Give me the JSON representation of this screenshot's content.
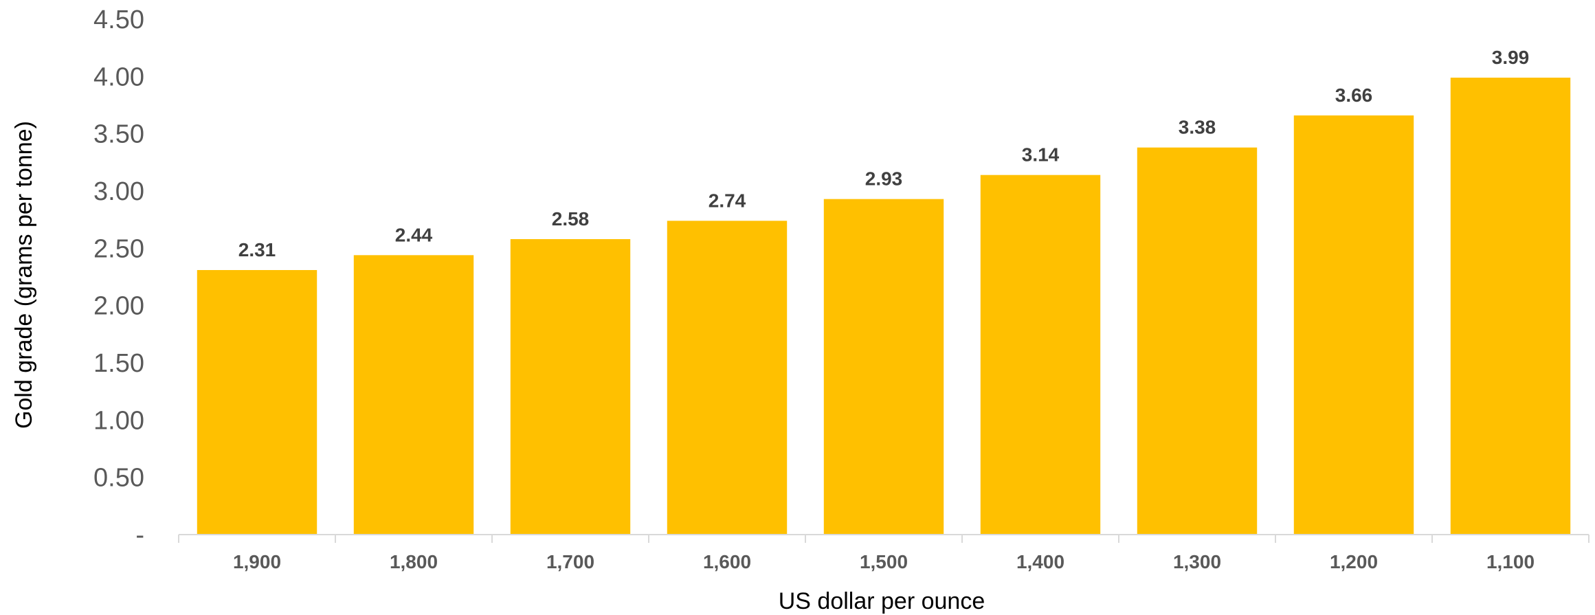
{
  "chart_data": {
    "type": "bar",
    "title": "",
    "xlabel": "US dollar per ounce",
    "ylabel": "Gold grade (grams per tonne)",
    "categories": [
      "1,900",
      "1,800",
      "1,700",
      "1,600",
      "1,500",
      "1,400",
      "1,300",
      "1,200",
      "1,100"
    ],
    "values": [
      2.31,
      2.44,
      2.58,
      2.74,
      2.93,
      3.14,
      3.38,
      3.66,
      3.99
    ],
    "data_labels": [
      "2.31",
      "2.44",
      "2.58",
      "2.74",
      "2.93",
      "3.14",
      "3.38",
      "3.66",
      "3.99"
    ],
    "ylim": [
      0,
      4.5
    ],
    "yticks": [
      0,
      0.5,
      1.0,
      1.5,
      2.0,
      2.5,
      3.0,
      3.5,
      4.0,
      4.5
    ],
    "ytick_labels": [
      "-",
      "0.50",
      "1.00",
      "1.50",
      "2.00",
      "2.50",
      "3.00",
      "3.50",
      "4.00",
      "4.50"
    ],
    "grid": false,
    "legend": "none",
    "bar_color": "#FFC000",
    "axis_color": "#D9D9D9"
  }
}
